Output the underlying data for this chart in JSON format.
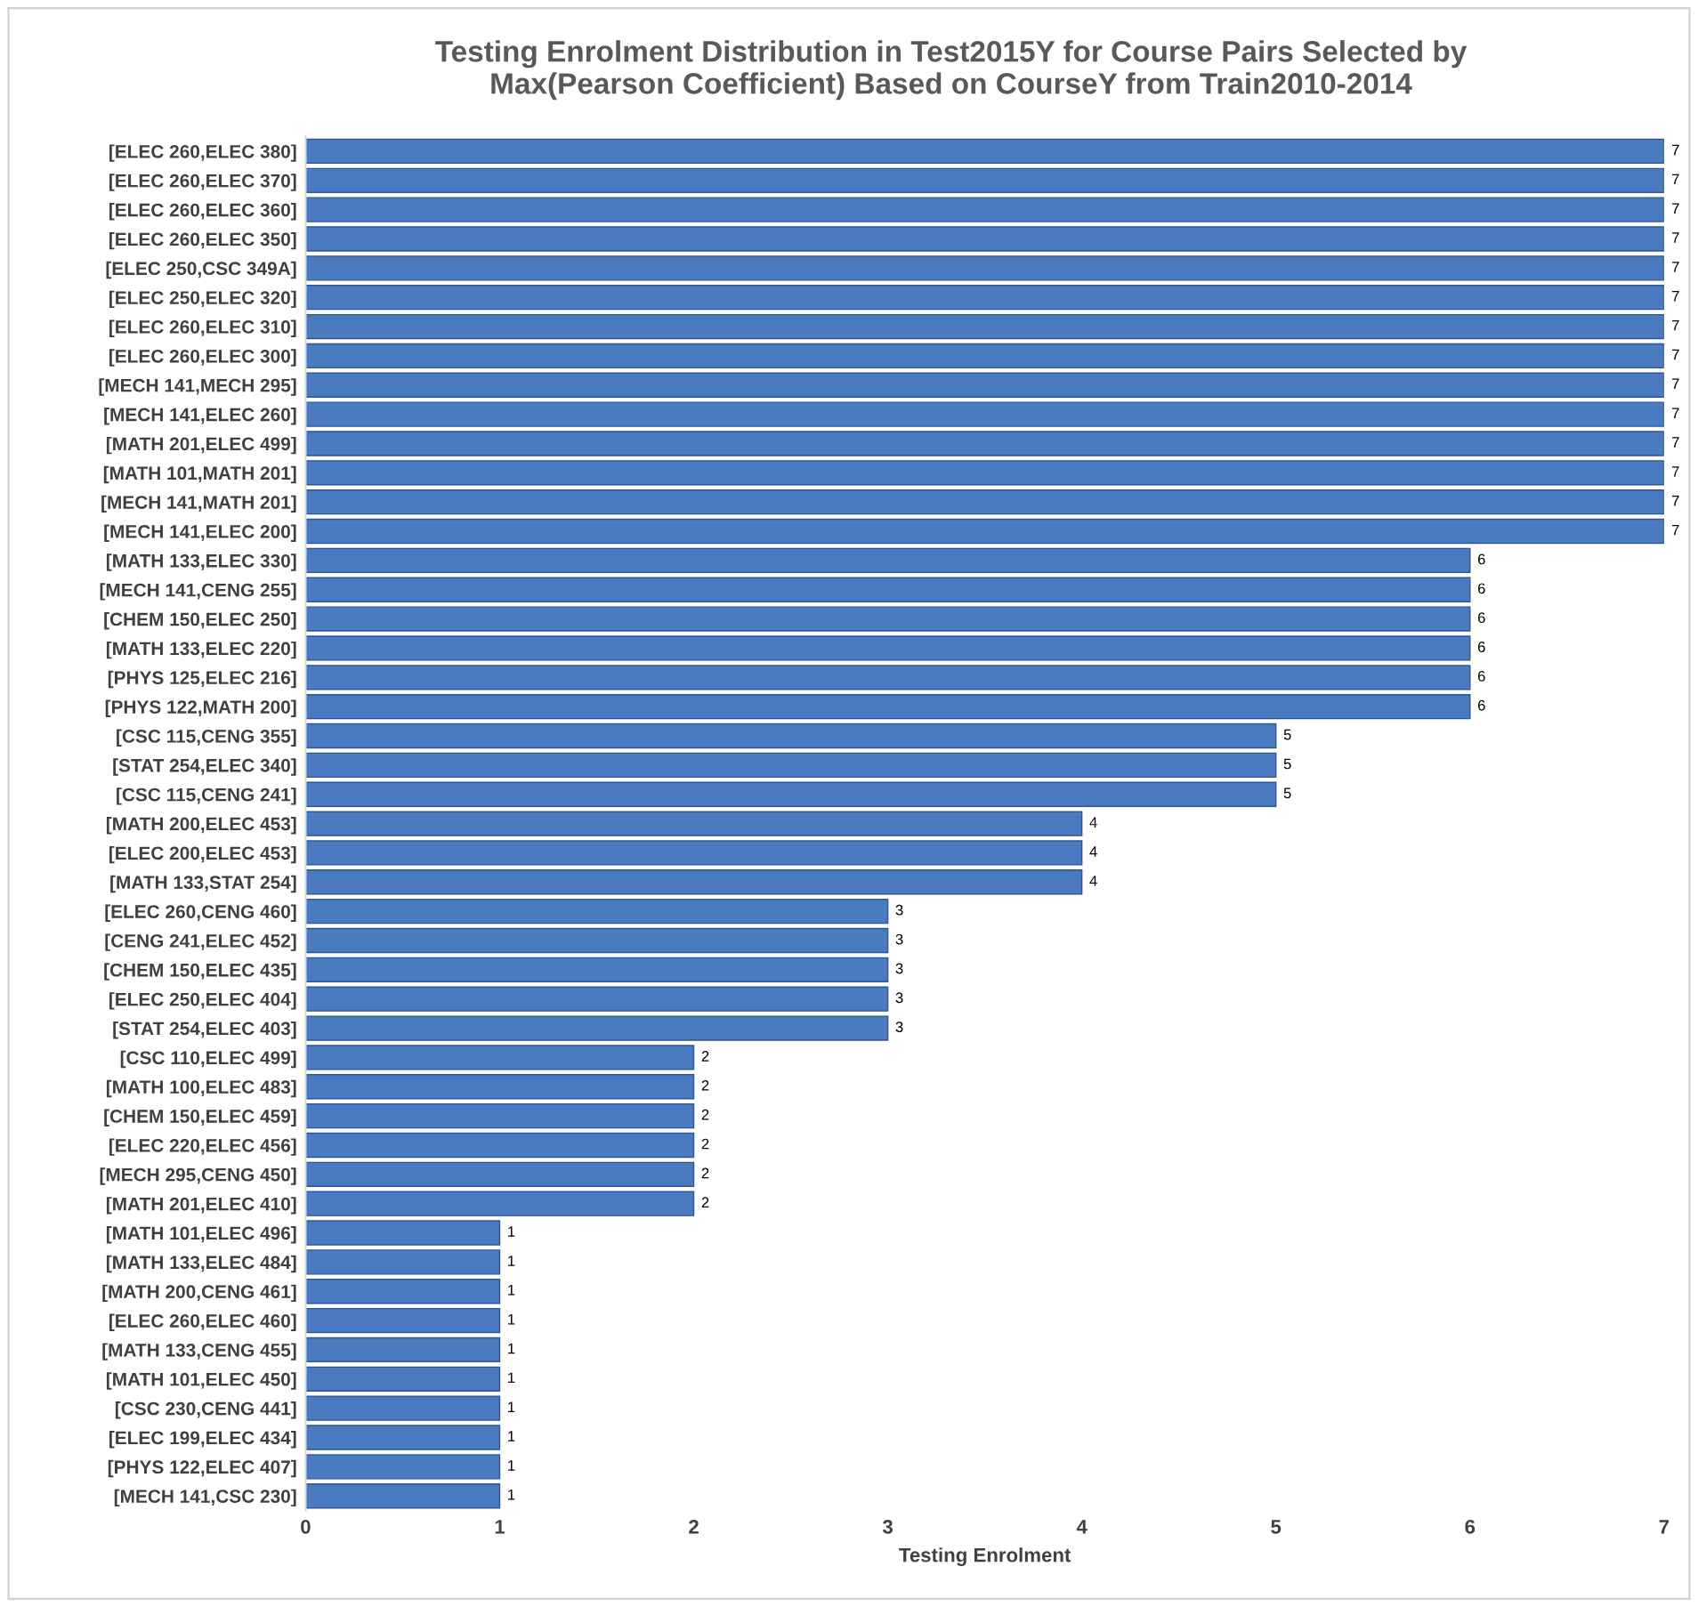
{
  "chart_data": {
    "type": "bar",
    "orientation": "horizontal",
    "title": "Testing Enrolment Distribution in Test2015Y for Course Pairs Selected by\nMax(Pearson Coefficient) Based on CourseY from Train2010-2014",
    "xlabel": "Testing Enrolment",
    "categories": [
      "[ELEC 260,ELEC 380]",
      "[ELEC 260,ELEC 370]",
      "[ELEC 260,ELEC 360]",
      "[ELEC 260,ELEC 350]",
      "[ELEC 250,CSC 349A]",
      "[ELEC 250,ELEC 320]",
      "[ELEC 260,ELEC 310]",
      "[ELEC 260,ELEC 300]",
      "[MECH 141,MECH 295]",
      "[MECH 141,ELEC 260]",
      "[MATH 201,ELEC 499]",
      "[MATH 101,MATH 201]",
      "[MECH 141,MATH 201]",
      "[MECH 141,ELEC 200]",
      "[MATH 133,ELEC 330]",
      "[MECH 141,CENG 255]",
      "[CHEM 150,ELEC 250]",
      "[MATH 133,ELEC 220]",
      "[PHYS 125,ELEC 216]",
      "[PHYS 122,MATH 200]",
      "[CSC 115,CENG 355]",
      "[STAT 254,ELEC 340]",
      "[CSC 115,CENG 241]",
      "[MATH 200,ELEC 453]",
      "[ELEC 200,ELEC 453]",
      "[MATH 133,STAT 254]",
      "[ELEC 260,CENG 460]",
      "[CENG 241,ELEC 452]",
      "[CHEM 150,ELEC 435]",
      "[ELEC 250,ELEC 404]",
      "[STAT 254,ELEC 403]",
      "[CSC 110,ELEC 499]",
      "[MATH 100,ELEC 483]",
      "[CHEM 150,ELEC 459]",
      "[ELEC 220,ELEC 456]",
      "[MECH 295,CENG 450]",
      "[MATH 201,ELEC 410]",
      "[MATH 101,ELEC 496]",
      "[MATH 133,ELEC 484]",
      "[MATH 200,CENG 461]",
      "[ELEC 260,ELEC 460]",
      "[MATH 133,CENG 455]",
      "[MATH 101,ELEC 450]",
      "[CSC 230,CENG 441]",
      "[ELEC 199,ELEC 434]",
      "[PHYS 122,ELEC 407]",
      "[MECH 141,CSC 230]"
    ],
    "values": [
      7,
      7,
      7,
      7,
      7,
      7,
      7,
      7,
      7,
      7,
      7,
      7,
      7,
      7,
      6,
      6,
      6,
      6,
      6,
      6,
      5,
      5,
      5,
      4,
      4,
      4,
      3,
      3,
      3,
      3,
      3,
      2,
      2,
      2,
      2,
      2,
      2,
      1,
      1,
      1,
      1,
      1,
      1,
      1,
      1,
      1,
      1
    ],
    "color": "#4a7bc0",
    "xlim": [
      0,
      7
    ],
    "xticks": [
      0,
      1,
      2,
      3,
      4,
      5,
      6,
      7
    ],
    "grid": false,
    "legend": false,
    "data_labels": true
  }
}
